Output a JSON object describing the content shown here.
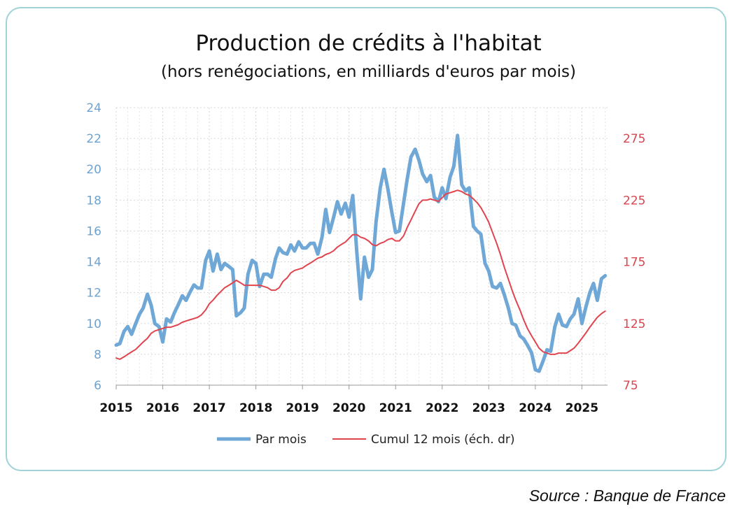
{
  "chart_data": {
    "type": "line",
    "title": "Production de crédits à l'habitat",
    "subtitle": "(hors renégociations, en milliards d'euros par mois)",
    "x_ticks": [
      "2015",
      "2016",
      "2017",
      "2018",
      "2019",
      "2020",
      "2021",
      "2022",
      "2023",
      "2024",
      "2025"
    ],
    "y_left": {
      "min": 6,
      "max": 24,
      "ticks": [
        6,
        8,
        10,
        12,
        14,
        16,
        18,
        20,
        22,
        24
      ]
    },
    "y_right": {
      "min": 75,
      "max": 300,
      "ticks": [
        75,
        125,
        175,
        225,
        275
      ]
    },
    "x_range": [
      2015.0,
      2025.55
    ],
    "grid": true,
    "legend_position": "bottom",
    "series": [
      {
        "name": "Par mois",
        "axis": "left",
        "color": "#6fa8d6",
        "points": [
          [
            2015.0,
            8.6
          ],
          [
            2015.08,
            8.7
          ],
          [
            2015.17,
            9.5
          ],
          [
            2015.25,
            9.8
          ],
          [
            2015.33,
            9.3
          ],
          [
            2015.42,
            10.0
          ],
          [
            2015.5,
            10.6
          ],
          [
            2015.58,
            11.0
          ],
          [
            2015.67,
            11.9
          ],
          [
            2015.75,
            11.2
          ],
          [
            2015.83,
            10.0
          ],
          [
            2015.92,
            9.8
          ],
          [
            2016.0,
            8.8
          ],
          [
            2016.08,
            10.3
          ],
          [
            2016.17,
            10.1
          ],
          [
            2016.25,
            10.7
          ],
          [
            2016.33,
            11.2
          ],
          [
            2016.42,
            11.8
          ],
          [
            2016.5,
            11.5
          ],
          [
            2016.58,
            12.0
          ],
          [
            2016.67,
            12.5
          ],
          [
            2016.75,
            12.3
          ],
          [
            2016.83,
            12.3
          ],
          [
            2016.92,
            14.1
          ],
          [
            2017.0,
            14.7
          ],
          [
            2017.08,
            13.4
          ],
          [
            2017.17,
            14.5
          ],
          [
            2017.25,
            13.5
          ],
          [
            2017.33,
            13.9
          ],
          [
            2017.42,
            13.7
          ],
          [
            2017.5,
            13.5
          ],
          [
            2017.58,
            10.5
          ],
          [
            2017.67,
            10.7
          ],
          [
            2017.75,
            11.0
          ],
          [
            2017.83,
            13.2
          ],
          [
            2017.92,
            14.1
          ],
          [
            2018.0,
            13.9
          ],
          [
            2018.08,
            12.4
          ],
          [
            2018.17,
            13.2
          ],
          [
            2018.25,
            13.2
          ],
          [
            2018.33,
            13.0
          ],
          [
            2018.42,
            14.2
          ],
          [
            2018.5,
            14.9
          ],
          [
            2018.58,
            14.6
          ],
          [
            2018.67,
            14.5
          ],
          [
            2018.75,
            15.1
          ],
          [
            2018.83,
            14.7
          ],
          [
            2018.92,
            15.3
          ],
          [
            2019.0,
            14.9
          ],
          [
            2019.08,
            14.9
          ],
          [
            2019.17,
            15.2
          ],
          [
            2019.25,
            15.2
          ],
          [
            2019.33,
            14.5
          ],
          [
            2019.42,
            15.6
          ],
          [
            2019.5,
            17.4
          ],
          [
            2019.58,
            15.9
          ],
          [
            2019.67,
            16.9
          ],
          [
            2019.75,
            17.9
          ],
          [
            2019.83,
            17.1
          ],
          [
            2019.92,
            17.8
          ],
          [
            2020.0,
            16.9
          ],
          [
            2020.08,
            18.3
          ],
          [
            2020.17,
            14.5
          ],
          [
            2020.25,
            11.6
          ],
          [
            2020.33,
            14.3
          ],
          [
            2020.42,
            13.0
          ],
          [
            2020.5,
            13.5
          ],
          [
            2020.58,
            16.6
          ],
          [
            2020.67,
            18.8
          ],
          [
            2020.75,
            20.0
          ],
          [
            2020.83,
            18.8
          ],
          [
            2020.92,
            17.2
          ],
          [
            2021.0,
            15.9
          ],
          [
            2021.08,
            16.0
          ],
          [
            2021.17,
            17.8
          ],
          [
            2021.25,
            19.4
          ],
          [
            2021.33,
            20.8
          ],
          [
            2021.42,
            21.3
          ],
          [
            2021.5,
            20.6
          ],
          [
            2021.58,
            19.7
          ],
          [
            2021.67,
            19.2
          ],
          [
            2021.75,
            19.6
          ],
          [
            2021.83,
            18.2
          ],
          [
            2021.92,
            17.9
          ],
          [
            2022.0,
            18.8
          ],
          [
            2022.08,
            18.1
          ],
          [
            2022.17,
            19.5
          ],
          [
            2022.25,
            20.2
          ],
          [
            2022.33,
            22.2
          ],
          [
            2022.42,
            19.0
          ],
          [
            2022.5,
            18.6
          ],
          [
            2022.58,
            18.8
          ],
          [
            2022.67,
            16.3
          ],
          [
            2022.75,
            16.0
          ],
          [
            2022.83,
            15.8
          ],
          [
            2022.92,
            13.9
          ],
          [
            2023.0,
            13.4
          ],
          [
            2023.08,
            12.4
          ],
          [
            2023.17,
            12.3
          ],
          [
            2023.25,
            12.6
          ],
          [
            2023.33,
            11.9
          ],
          [
            2023.42,
            11.0
          ],
          [
            2023.5,
            10.0
          ],
          [
            2023.58,
            9.9
          ],
          [
            2023.67,
            9.2
          ],
          [
            2023.75,
            9.0
          ],
          [
            2023.83,
            8.6
          ],
          [
            2023.92,
            8.1
          ],
          [
            2024.0,
            7.0
          ],
          [
            2024.08,
            6.9
          ],
          [
            2024.17,
            7.6
          ],
          [
            2024.25,
            8.3
          ],
          [
            2024.33,
            8.2
          ],
          [
            2024.42,
            9.8
          ],
          [
            2024.5,
            10.6
          ],
          [
            2024.58,
            9.9
          ],
          [
            2024.67,
            9.8
          ],
          [
            2024.75,
            10.3
          ],
          [
            2024.83,
            10.6
          ],
          [
            2024.92,
            11.6
          ],
          [
            2025.0,
            10.0
          ],
          [
            2025.08,
            11.0
          ],
          [
            2025.17,
            12.0
          ],
          [
            2025.25,
            12.6
          ],
          [
            2025.33,
            11.5
          ],
          [
            2025.42,
            12.9
          ],
          [
            2025.5,
            13.1
          ]
        ]
      },
      {
        "name": "Cumul 12 mois (éch. dr)",
        "axis": "right",
        "color": "#e0454f",
        "points": [
          [
            2015.0,
            97
          ],
          [
            2015.08,
            96
          ],
          [
            2015.17,
            98
          ],
          [
            2015.25,
            100
          ],
          [
            2015.33,
            102
          ],
          [
            2015.42,
            104
          ],
          [
            2015.5,
            107
          ],
          [
            2015.58,
            110
          ],
          [
            2015.67,
            113
          ],
          [
            2015.75,
            117
          ],
          [
            2015.83,
            119
          ],
          [
            2015.92,
            120
          ],
          [
            2016.0,
            121
          ],
          [
            2016.08,
            122
          ],
          [
            2016.17,
            122
          ],
          [
            2016.25,
            123
          ],
          [
            2016.33,
            124
          ],
          [
            2016.42,
            126
          ],
          [
            2016.5,
            127
          ],
          [
            2016.58,
            128
          ],
          [
            2016.67,
            129
          ],
          [
            2016.75,
            130
          ],
          [
            2016.83,
            132
          ],
          [
            2016.92,
            136
          ],
          [
            2017.0,
            141
          ],
          [
            2017.08,
            144
          ],
          [
            2017.17,
            148
          ],
          [
            2017.25,
            151
          ],
          [
            2017.33,
            154
          ],
          [
            2017.42,
            156
          ],
          [
            2017.5,
            158
          ],
          [
            2017.58,
            160
          ],
          [
            2017.67,
            158
          ],
          [
            2017.75,
            156
          ],
          [
            2017.83,
            156
          ],
          [
            2017.92,
            156
          ],
          [
            2018.0,
            156
          ],
          [
            2018.08,
            156
          ],
          [
            2018.17,
            155
          ],
          [
            2018.25,
            154
          ],
          [
            2018.33,
            152
          ],
          [
            2018.42,
            152
          ],
          [
            2018.5,
            154
          ],
          [
            2018.58,
            159
          ],
          [
            2018.67,
            162
          ],
          [
            2018.75,
            166
          ],
          [
            2018.83,
            168
          ],
          [
            2018.92,
            169
          ],
          [
            2019.0,
            170
          ],
          [
            2019.08,
            172
          ],
          [
            2019.17,
            174
          ],
          [
            2019.25,
            176
          ],
          [
            2019.33,
            178
          ],
          [
            2019.42,
            179
          ],
          [
            2019.5,
            181
          ],
          [
            2019.58,
            182
          ],
          [
            2019.67,
            184
          ],
          [
            2019.75,
            187
          ],
          [
            2019.83,
            189
          ],
          [
            2019.92,
            191
          ],
          [
            2020.0,
            194
          ],
          [
            2020.08,
            197
          ],
          [
            2020.17,
            197
          ],
          [
            2020.25,
            195
          ],
          [
            2020.33,
            194
          ],
          [
            2020.42,
            192
          ],
          [
            2020.5,
            189
          ],
          [
            2020.58,
            188
          ],
          [
            2020.67,
            190
          ],
          [
            2020.75,
            191
          ],
          [
            2020.83,
            193
          ],
          [
            2020.92,
            194
          ],
          [
            2021.0,
            192
          ],
          [
            2021.08,
            192
          ],
          [
            2021.17,
            196
          ],
          [
            2021.25,
            203
          ],
          [
            2021.33,
            209
          ],
          [
            2021.42,
            216
          ],
          [
            2021.5,
            222
          ],
          [
            2021.58,
            225
          ],
          [
            2021.67,
            225
          ],
          [
            2021.75,
            226
          ],
          [
            2021.83,
            225
          ],
          [
            2021.92,
            224
          ],
          [
            2022.0,
            227
          ],
          [
            2022.08,
            230
          ],
          [
            2022.17,
            231
          ],
          [
            2022.25,
            232
          ],
          [
            2022.33,
            233
          ],
          [
            2022.42,
            232
          ],
          [
            2022.5,
            230
          ],
          [
            2022.58,
            229
          ],
          [
            2022.67,
            226
          ],
          [
            2022.75,
            223
          ],
          [
            2022.83,
            219
          ],
          [
            2022.92,
            213
          ],
          [
            2023.0,
            207
          ],
          [
            2023.08,
            199
          ],
          [
            2023.17,
            190
          ],
          [
            2023.25,
            181
          ],
          [
            2023.33,
            171
          ],
          [
            2023.42,
            161
          ],
          [
            2023.5,
            152
          ],
          [
            2023.58,
            144
          ],
          [
            2023.67,
            136
          ],
          [
            2023.75,
            128
          ],
          [
            2023.83,
            121
          ],
          [
            2023.92,
            115
          ],
          [
            2024.0,
            110
          ],
          [
            2024.08,
            105
          ],
          [
            2024.17,
            102
          ],
          [
            2024.25,
            101
          ],
          [
            2024.33,
            100
          ],
          [
            2024.42,
            100
          ],
          [
            2024.5,
            101
          ],
          [
            2024.58,
            101
          ],
          [
            2024.67,
            101
          ],
          [
            2024.75,
            103
          ],
          [
            2024.83,
            105
          ],
          [
            2024.92,
            109
          ],
          [
            2025.0,
            113
          ],
          [
            2025.08,
            117
          ],
          [
            2025.17,
            122
          ],
          [
            2025.25,
            126
          ],
          [
            2025.33,
            130
          ],
          [
            2025.42,
            133
          ],
          [
            2025.5,
            135
          ]
        ]
      }
    ]
  },
  "source_label": "Source : Banque de France"
}
